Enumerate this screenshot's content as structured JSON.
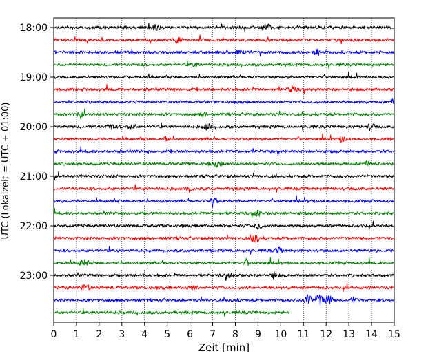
{
  "chart_data": {
    "type": "line",
    "title": "",
    "xlabel": "Zeit  [min]",
    "ylabel": "UTC (Lokalzeit = UTC + 01:00)",
    "xlim": [
      0,
      15
    ],
    "x_ticks": [
      0,
      1,
      2,
      3,
      4,
      5,
      6,
      7,
      8,
      9,
      10,
      11,
      12,
      13,
      14,
      15
    ],
    "y_tick_labels": [
      "18:00",
      "19:00",
      "20:00",
      "21:00",
      "22:00",
      "23:00"
    ],
    "grid": "vertical dotted",
    "series_colors": [
      "#000000",
      "#ff0000",
      "#0000ff",
      "#008000"
    ],
    "series": [
      {
        "start": "18:00",
        "color": "#000000",
        "x_end": 15,
        "events": [
          {
            "x": 4.5,
            "amp": 0.45
          },
          {
            "x": 9.35,
            "amp": 0.8
          }
        ]
      },
      {
        "start": "18:15",
        "color": "#ff0000",
        "x_end": 15,
        "events": [
          {
            "x": 5.45,
            "amp": 0.45
          }
        ]
      },
      {
        "start": "18:30",
        "color": "#0000ff",
        "x_end": 15,
        "events": [
          {
            "x": 8.2,
            "amp": 0.3
          },
          {
            "x": 11.6,
            "amp": 0.45
          }
        ]
      },
      {
        "start": "18:45",
        "color": "#008000",
        "x_end": 15,
        "events": [
          {
            "x": 6.2,
            "amp": 0.3
          }
        ]
      },
      {
        "start": "19:00",
        "color": "#000000",
        "x_end": 15,
        "events": []
      },
      {
        "start": "19:15",
        "color": "#ff0000",
        "x_end": 15,
        "events": [
          {
            "x": 10.5,
            "amp": 0.5
          }
        ]
      },
      {
        "start": "19:30",
        "color": "#0000ff",
        "x_end": 15,
        "events": [
          {
            "x": 15,
            "amp": 0.45
          }
        ]
      },
      {
        "start": "19:45",
        "color": "#008000",
        "x_end": 15,
        "events": [
          {
            "x": 1.2,
            "amp": 0.3
          },
          {
            "x": 6.6,
            "amp": 0.35
          }
        ]
      },
      {
        "start": "20:00",
        "color": "#000000",
        "x_end": 15,
        "events": [
          {
            "x": 2.5,
            "amp": 0.45
          },
          {
            "x": 3.4,
            "amp": 0.55
          },
          {
            "x": 6.75,
            "amp": 0.5
          },
          {
            "x": 14,
            "amp": 0.55
          }
        ]
      },
      {
        "start": "20:15",
        "color": "#ff0000",
        "x_end": 15,
        "events": [
          {
            "x": 4.9,
            "amp": 0.35
          },
          {
            "x": 12.7,
            "amp": 0.35
          }
        ]
      },
      {
        "start": "20:30",
        "color": "#0000ff",
        "x_end": 15,
        "events": []
      },
      {
        "start": "20:45",
        "color": "#008000",
        "x_end": 15,
        "events": [
          {
            "x": 7.2,
            "amp": 0.35
          },
          {
            "x": 13.8,
            "amp": 0.35
          }
        ]
      },
      {
        "start": "21:00",
        "color": "#000000",
        "x_end": 15,
        "events": []
      },
      {
        "start": "21:15",
        "color": "#ff0000",
        "x_end": 15,
        "events": [
          {
            "x": 6,
            "amp": 0.4
          }
        ]
      },
      {
        "start": "21:30",
        "color": "#0000ff",
        "x_end": 15,
        "events": [
          {
            "x": 7,
            "amp": 0.85
          }
        ]
      },
      {
        "start": "21:45",
        "color": "#008000",
        "x_end": 15,
        "events": [
          {
            "x": 8.95,
            "amp": 0.45
          }
        ]
      },
      {
        "start": "22:00",
        "color": "#000000",
        "x_end": 15,
        "events": [
          {
            "x": 9,
            "amp": 0.5
          }
        ]
      },
      {
        "start": "22:15",
        "color": "#ff0000",
        "x_end": 15,
        "events": [
          {
            "x": 8.85,
            "amp": 0.75
          }
        ]
      },
      {
        "start": "22:30",
        "color": "#0000ff",
        "x_end": 15,
        "events": [
          {
            "x": 9.9,
            "amp": 0.4
          }
        ]
      },
      {
        "start": "22:45",
        "color": "#008000",
        "x_end": 15,
        "events": [
          {
            "x": 1.3,
            "amp": 0.5
          },
          {
            "x": 8.5,
            "amp": 0.35
          }
        ]
      },
      {
        "start": "23:00",
        "color": "#000000",
        "x_end": 15,
        "events": [
          {
            "x": 7.7,
            "amp": 0.4
          },
          {
            "x": 9.7,
            "amp": 0.4
          }
        ]
      },
      {
        "start": "23:15",
        "color": "#ff0000",
        "x_end": 15,
        "events": [
          {
            "x": 1.4,
            "amp": 0.5
          },
          {
            "x": 6.1,
            "amp": 0.4
          }
        ]
      },
      {
        "start": "23:30",
        "color": "#0000ff",
        "x_end": 15,
        "events": [
          {
            "x": 11.2,
            "amp": 1.0
          },
          {
            "x": 11.7,
            "amp": 1.0
          },
          {
            "x": 12.1,
            "amp": 0.9
          },
          {
            "x": 13.2,
            "amp": 0.35
          }
        ]
      },
      {
        "start": "23:45",
        "color": "#008000",
        "x_end": 10.4,
        "events": []
      }
    ]
  }
}
